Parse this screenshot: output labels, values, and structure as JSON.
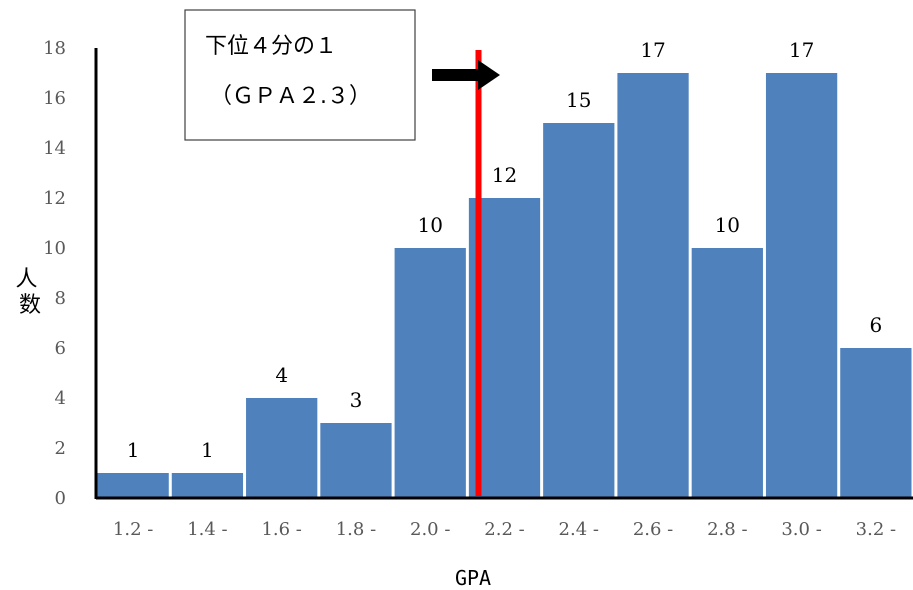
{
  "chart_data": {
    "type": "bar",
    "categories": [
      "1.2 -",
      "1.4 -",
      "1.6 -",
      "1.8 -",
      "2.0 -",
      "2.2 -",
      "2.4 -",
      "2.6 -",
      "2.8 -",
      "3.0 -",
      "3.2 -"
    ],
    "values": [
      1,
      1,
      4,
      3,
      10,
      12,
      15,
      17,
      10,
      17,
      6
    ],
    "xlabel": "GPA",
    "ylabel": "人数",
    "ylim": [
      0,
      18
    ],
    "yticks": [
      0,
      2,
      4,
      6,
      8,
      10,
      12,
      14,
      16,
      18
    ],
    "grid": false,
    "bar_color": "#4f81bd",
    "annotation": {
      "line1": "下位４分の１",
      "line2": "（ＧＰＡ２.３）"
    },
    "marker_line": {
      "value": 2.3,
      "color": "#ff0000"
    }
  }
}
